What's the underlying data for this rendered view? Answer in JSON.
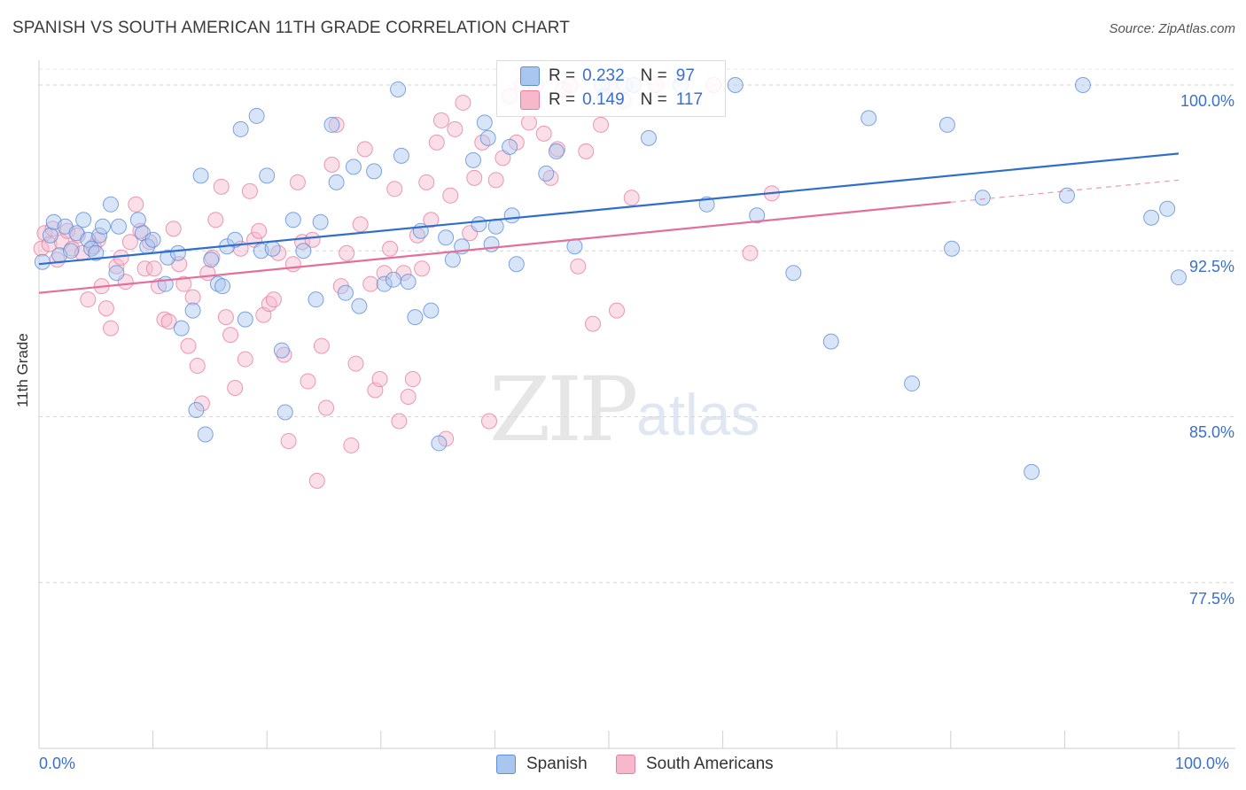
{
  "title": "SPANISH VS SOUTH AMERICAN 11TH GRADE CORRELATION CHART",
  "source": "Source: ZipAtlas.com",
  "watermark": {
    "zip": "ZIP",
    "atlas": "atlas"
  },
  "legend_top": [
    {
      "r_label": "R =",
      "r_value": "0.232",
      "n_label": "N =",
      "n_value": "97",
      "color": "#a9c6ef"
    },
    {
      "r_label": "R =",
      "r_value": "0.149",
      "n_label": "N =",
      "n_value": "117",
      "color": "#f6b9cc"
    }
  ],
  "colors": {
    "spanish_fill": "#a9c6ef",
    "spanish_stroke": "#5f8fd8",
    "spanish_line": "#2f6fcb",
    "sa_fill": "#f6b9cc",
    "sa_stroke": "#e87fa0",
    "sa_line": "#e2709a",
    "tick_text": "#3a6fd0"
  },
  "chart_data": {
    "type": "scatter",
    "title": "SPANISH VS SOUTH AMERICAN 11TH GRADE CORRELATION CHART",
    "xlabel": "",
    "ylabel": "11th Grade",
    "xlim": [
      0,
      100
    ],
    "ylim": [
      70.0,
      100.8
    ],
    "x_tick_labels": [
      "0.0%",
      "100.0%"
    ],
    "y_ticks": [
      100.0,
      92.5,
      85.0,
      77.5
    ],
    "y_tick_labels": [
      "100.0%",
      "92.5%",
      "85.0%",
      "77.5%"
    ],
    "grid": "horizontal dashed",
    "legend_placement": "bottom",
    "series": [
      {
        "name": "Spanish",
        "trend": {
          "x": [
            0,
            100
          ],
          "y": [
            91.9,
            96.9
          ]
        },
        "points": [
          [
            0.3,
            92.0
          ],
          [
            1.0,
            93.2
          ],
          [
            1.3,
            93.8
          ],
          [
            1.8,
            92.3
          ],
          [
            2.3,
            93.6
          ],
          [
            2.8,
            92.5
          ],
          [
            3.3,
            93.3
          ],
          [
            3.9,
            93.9
          ],
          [
            4.3,
            93.0
          ],
          [
            4.6,
            92.6
          ],
          [
            5.0,
            92.4
          ],
          [
            5.3,
            93.2
          ],
          [
            5.6,
            93.6
          ],
          [
            6.3,
            94.6
          ],
          [
            6.8,
            91.5
          ],
          [
            7.0,
            93.6
          ],
          [
            8.7,
            93.9
          ],
          [
            9.1,
            93.3
          ],
          [
            9.5,
            92.7
          ],
          [
            10.0,
            93.0
          ],
          [
            11.1,
            91.0
          ],
          [
            11.3,
            92.2
          ],
          [
            12.2,
            92.4
          ],
          [
            12.5,
            89.0
          ],
          [
            13.5,
            89.8
          ],
          [
            13.8,
            85.3
          ],
          [
            14.2,
            95.9
          ],
          [
            14.6,
            84.2
          ],
          [
            15.1,
            92.1
          ],
          [
            15.7,
            91.0
          ],
          [
            16.1,
            90.9
          ],
          [
            16.5,
            92.7
          ],
          [
            17.2,
            93.0
          ],
          [
            17.7,
            98.0
          ],
          [
            18.1,
            89.4
          ],
          [
            19.1,
            98.6
          ],
          [
            19.5,
            92.5
          ],
          [
            20.0,
            95.9
          ],
          [
            20.5,
            92.6
          ],
          [
            21.3,
            88.0
          ],
          [
            21.6,
            85.2
          ],
          [
            22.3,
            93.9
          ],
          [
            23.2,
            92.5
          ],
          [
            24.3,
            90.3
          ],
          [
            24.7,
            93.8
          ],
          [
            25.7,
            98.2
          ],
          [
            26.1,
            95.6
          ],
          [
            26.9,
            90.6
          ],
          [
            27.6,
            96.3
          ],
          [
            28.1,
            90.0
          ],
          [
            29.4,
            96.1
          ],
          [
            30.3,
            91.0
          ],
          [
            31.1,
            91.2
          ],
          [
            31.5,
            99.8
          ],
          [
            31.8,
            96.8
          ],
          [
            32.4,
            91.1
          ],
          [
            33.0,
            89.5
          ],
          [
            33.5,
            93.4
          ],
          [
            34.4,
            89.8
          ],
          [
            35.1,
            83.8
          ],
          [
            35.7,
            93.1
          ],
          [
            36.3,
            92.1
          ],
          [
            37.1,
            92.7
          ],
          [
            38.1,
            96.6
          ],
          [
            38.6,
            93.7
          ],
          [
            39.1,
            98.3
          ],
          [
            39.4,
            97.6
          ],
          [
            39.7,
            92.8
          ],
          [
            40.1,
            93.6
          ],
          [
            41.3,
            97.2
          ],
          [
            41.5,
            94.1
          ],
          [
            41.9,
            91.9
          ],
          [
            44.5,
            96.0
          ],
          [
            45.4,
            97.0
          ],
          [
            47.0,
            92.7
          ],
          [
            49.4,
            100.0
          ],
          [
            49.6,
            99.5
          ],
          [
            51.4,
            100.0
          ],
          [
            52.2,
            100.0
          ],
          [
            53.5,
            97.6
          ],
          [
            56.3,
            100.0
          ],
          [
            58.6,
            94.6
          ],
          [
            61.1,
            100.0
          ],
          [
            63.0,
            94.1
          ],
          [
            66.2,
            91.5
          ],
          [
            69.5,
            88.4
          ],
          [
            72.8,
            98.5
          ],
          [
            76.6,
            86.5
          ],
          [
            79.7,
            98.2
          ],
          [
            80.1,
            92.6
          ],
          [
            82.8,
            94.9
          ],
          [
            87.1,
            82.5
          ],
          [
            90.2,
            95.0
          ],
          [
            91.6,
            100.0
          ],
          [
            97.6,
            94.0
          ],
          [
            99.0,
            94.4
          ],
          [
            100.0,
            91.3
          ]
        ]
      },
      {
        "name": "South Americans",
        "trend": {
          "x": [
            0,
            80
          ],
          "y": [
            90.6,
            94.7
          ]
        },
        "trend_dashed": {
          "x": [
            80,
            100
          ],
          "y": [
            94.7,
            95.7
          ]
        },
        "points": [
          [
            0.2,
            92.6
          ],
          [
            0.5,
            93.3
          ],
          [
            0.9,
            92.8
          ],
          [
            1.2,
            93.5
          ],
          [
            1.6,
            92.1
          ],
          [
            2.0,
            92.9
          ],
          [
            2.5,
            93.4
          ],
          [
            2.9,
            92.6
          ],
          [
            3.4,
            93.2
          ],
          [
            3.8,
            92.4
          ],
          [
            4.3,
            90.3
          ],
          [
            4.8,
            92.7
          ],
          [
            5.2,
            93.0
          ],
          [
            5.5,
            90.9
          ],
          [
            5.9,
            89.9
          ],
          [
            6.3,
            89.0
          ],
          [
            6.8,
            91.8
          ],
          [
            7.2,
            92.2
          ],
          [
            7.6,
            91.1
          ],
          [
            8.0,
            92.9
          ],
          [
            8.5,
            94.6
          ],
          [
            8.9,
            93.4
          ],
          [
            9.3,
            91.7
          ],
          [
            9.7,
            92.9
          ],
          [
            10.1,
            91.7
          ],
          [
            10.5,
            90.9
          ],
          [
            11.0,
            89.4
          ],
          [
            11.4,
            89.3
          ],
          [
            11.8,
            93.5
          ],
          [
            12.3,
            91.9
          ],
          [
            12.7,
            91.0
          ],
          [
            13.1,
            88.2
          ],
          [
            13.5,
            90.4
          ],
          [
            13.9,
            87.3
          ],
          [
            14.3,
            85.6
          ],
          [
            14.8,
            91.5
          ],
          [
            15.2,
            92.2
          ],
          [
            15.5,
            93.9
          ],
          [
            16.0,
            95.4
          ],
          [
            16.4,
            89.5
          ],
          [
            16.8,
            88.7
          ],
          [
            17.2,
            86.3
          ],
          [
            17.7,
            92.6
          ],
          [
            18.1,
            87.6
          ],
          [
            18.5,
            95.2
          ],
          [
            18.9,
            93.0
          ],
          [
            19.3,
            93.4
          ],
          [
            19.7,
            89.6
          ],
          [
            20.2,
            90.1
          ],
          [
            20.6,
            90.3
          ],
          [
            21.0,
            92.4
          ],
          [
            21.5,
            87.8
          ],
          [
            21.9,
            83.9
          ],
          [
            22.3,
            91.9
          ],
          [
            22.7,
            95.6
          ],
          [
            23.1,
            92.9
          ],
          [
            23.6,
            86.6
          ],
          [
            24.0,
            93.0
          ],
          [
            24.4,
            82.1
          ],
          [
            24.8,
            88.2
          ],
          [
            25.2,
            85.4
          ],
          [
            25.7,
            96.4
          ],
          [
            26.1,
            98.2
          ],
          [
            26.5,
            90.9
          ],
          [
            27.0,
            92.4
          ],
          [
            27.4,
            83.7
          ],
          [
            27.8,
            87.4
          ],
          [
            28.2,
            93.7
          ],
          [
            28.6,
            97.1
          ],
          [
            29.1,
            91.0
          ],
          [
            29.5,
            86.2
          ],
          [
            29.9,
            86.7
          ],
          [
            30.3,
            91.5
          ],
          [
            30.8,
            92.6
          ],
          [
            31.2,
            95.3
          ],
          [
            31.6,
            84.8
          ],
          [
            32.0,
            91.5
          ],
          [
            32.4,
            85.9
          ],
          [
            32.8,
            86.7
          ],
          [
            33.2,
            93.2
          ],
          [
            33.6,
            91.7
          ],
          [
            34.0,
            95.6
          ],
          [
            34.4,
            93.9
          ],
          [
            34.9,
            97.4
          ],
          [
            35.3,
            98.4
          ],
          [
            35.7,
            84.0
          ],
          [
            36.1,
            95.0
          ],
          [
            36.5,
            98.0
          ],
          [
            37.2,
            99.2
          ],
          [
            37.8,
            93.3
          ],
          [
            38.2,
            95.8
          ],
          [
            38.9,
            97.4
          ],
          [
            39.5,
            84.8
          ],
          [
            40.1,
            95.7
          ],
          [
            40.7,
            96.7
          ],
          [
            41.3,
            99.5
          ],
          [
            41.9,
            97.4
          ],
          [
            42.4,
            100.0
          ],
          [
            43.0,
            98.3
          ],
          [
            43.6,
            100.0
          ],
          [
            44.3,
            97.8
          ],
          [
            44.9,
            95.8
          ],
          [
            45.5,
            97.1
          ],
          [
            46.0,
            99.8
          ],
          [
            46.6,
            100.0
          ],
          [
            47.3,
            91.8
          ],
          [
            48.0,
            97.0
          ],
          [
            48.6,
            89.2
          ],
          [
            49.3,
            98.2
          ],
          [
            50.0,
            100.0
          ],
          [
            50.7,
            89.8
          ],
          [
            51.3,
            99.3
          ],
          [
            52.0,
            94.9
          ],
          [
            54.1,
            100.0
          ],
          [
            59.2,
            100.0
          ],
          [
            62.4,
            92.4
          ],
          [
            64.3,
            95.1
          ]
        ]
      }
    ]
  },
  "bottom_legend": [
    {
      "label": "Spanish",
      "color": "#a9c6ef"
    },
    {
      "label": "South Americans",
      "color": "#f6b9cc"
    }
  ]
}
